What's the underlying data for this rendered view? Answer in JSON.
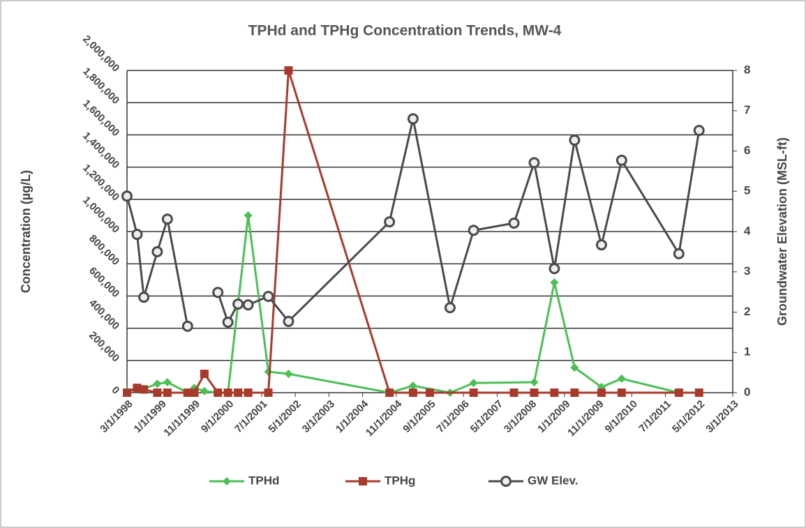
{
  "chart_data": {
    "type": "line",
    "title": "TPHd and TPHg Concentration Trends, MW-4",
    "y_label": "Concentration (µg/L)",
    "y2_label": "Groundwater Elevation (MSL-ft)",
    "xlim": [
      "3/1/1998",
      "3/1/2013"
    ],
    "xticks": [
      "3/1/1998",
      "1/1/1999",
      "11/1/1999",
      "9/1/2000",
      "7/1/2001",
      "5/1/2002",
      "3/1/2003",
      "1/1/2004",
      "11/1/2004",
      "9/1/2005",
      "7/1/2006",
      "5/1/2007",
      "3/1/2008",
      "1/1/2009",
      "11/1/2009",
      "9/1/2010",
      "7/1/2011",
      "5/1/2012",
      "3/1/2013"
    ],
    "ylim": [
      0,
      2000000
    ],
    "yticks": [
      0,
      {
        "value": 200000,
        "label": "200,000"
      },
      {
        "value": 400000,
        "label": "400,000"
      },
      {
        "value": 600000,
        "label": "600,000"
      },
      {
        "value": 800000,
        "label": "800,000"
      },
      {
        "value": 1000000,
        "label": "1,000,000"
      },
      {
        "value": 1200000,
        "label": "1,200,000"
      },
      {
        "value": 1400000,
        "label": "1,400,000"
      },
      {
        "value": 1600000,
        "label": "1,600,000"
      },
      {
        "value": 1800000,
        "label": "1,800,000"
      },
      {
        "value": 2000000,
        "label": "2,000,000"
      }
    ],
    "y2lim": [
      0,
      8
    ],
    "y2ticks": [
      0,
      1,
      2,
      3,
      4,
      5,
      6,
      7,
      8
    ],
    "grid": true,
    "legend": "bottom",
    "series": [
      {
        "name": "TPHd",
        "color": "#4cbf56",
        "marker": "diamond",
        "x": [
          "3/1/1998",
          "6/1/1998",
          "8/1/1998",
          "12/1/1998",
          "3/1/1999",
          "9/1/1999",
          "11/1/1999",
          "2/1/2000",
          "6/1/2000",
          "9/1/2000",
          "3/1/2001",
          "9/1/2001",
          "3/1/2002",
          "9/1/2004",
          "4/1/2005",
          "3/1/2006",
          "10/1/2006",
          "4/1/2008",
          "10/1/2008",
          "4/1/2009",
          "12/1/2009",
          "6/1/2010",
          "11/1/2011",
          "5/1/2012"
        ],
        "values": [
          10000,
          30000,
          25000,
          55000,
          65000,
          0,
          30000,
          10000,
          0,
          0,
          1100000,
          130000,
          117000,
          0,
          43000,
          0,
          60000,
          65000,
          684000,
          156000,
          35000,
          87000,
          0,
          0
        ]
      },
      {
        "name": "TPHg",
        "color": "#a83a2c",
        "marker": "square",
        "x": [
          "3/1/1998",
          "6/1/1998",
          "8/1/1998",
          "12/1/1998",
          "3/1/1999",
          "9/1/1999",
          "11/1/1999",
          "2/1/2000",
          "6/1/2000",
          "9/1/2000",
          "12/1/2000",
          "3/1/2001",
          "9/1/2001",
          "3/1/2002",
          "9/1/2004",
          "4/1/2005",
          "9/1/2005",
          "10/1/2006",
          "10/1/2007",
          "4/1/2008",
          "10/1/2008",
          "4/1/2009",
          "12/1/2009",
          "6/1/2010",
          "11/1/2011",
          "5/1/2012"
        ],
        "values": [
          0,
          30000,
          20000,
          0,
          0,
          0,
          0,
          117000,
          0,
          0,
          0,
          0,
          0,
          2000000,
          0,
          0,
          0,
          0,
          0,
          0,
          0,
          0,
          0,
          0,
          0,
          0
        ]
      },
      {
        "name": "GW Elev.",
        "color": "#4a4a4a",
        "marker": "circle",
        "axis": "y2",
        "x": [
          "3/1/1998",
          "6/1/1998",
          "8/1/1998",
          "12/1/1998",
          "3/1/1999",
          "9/1/1999",
          "1/1/2000",
          "6/1/2000",
          "9/1/2000",
          "12/1/2000",
          "3/1/2001",
          "9/1/2001",
          "3/1/2002",
          "9/1/2004",
          "4/1/2005",
          "3/1/2006",
          "10/1/2006",
          "10/1/2007",
          "4/1/2008",
          "10/1/2008",
          "4/1/2009",
          "12/1/2009",
          "6/1/2010",
          "11/1/2011",
          "5/1/2012"
        ],
        "values": [
          4.88,
          3.93,
          2.37,
          3.5,
          4.31,
          1.65,
          null,
          2.49,
          1.75,
          2.2,
          2.18,
          2.39,
          1.77,
          4.24,
          6.8,
          2.11,
          4.03,
          4.21,
          5.71,
          3.08,
          6.27,
          3.67,
          5.77,
          3.45,
          6.51
        ]
      }
    ]
  }
}
